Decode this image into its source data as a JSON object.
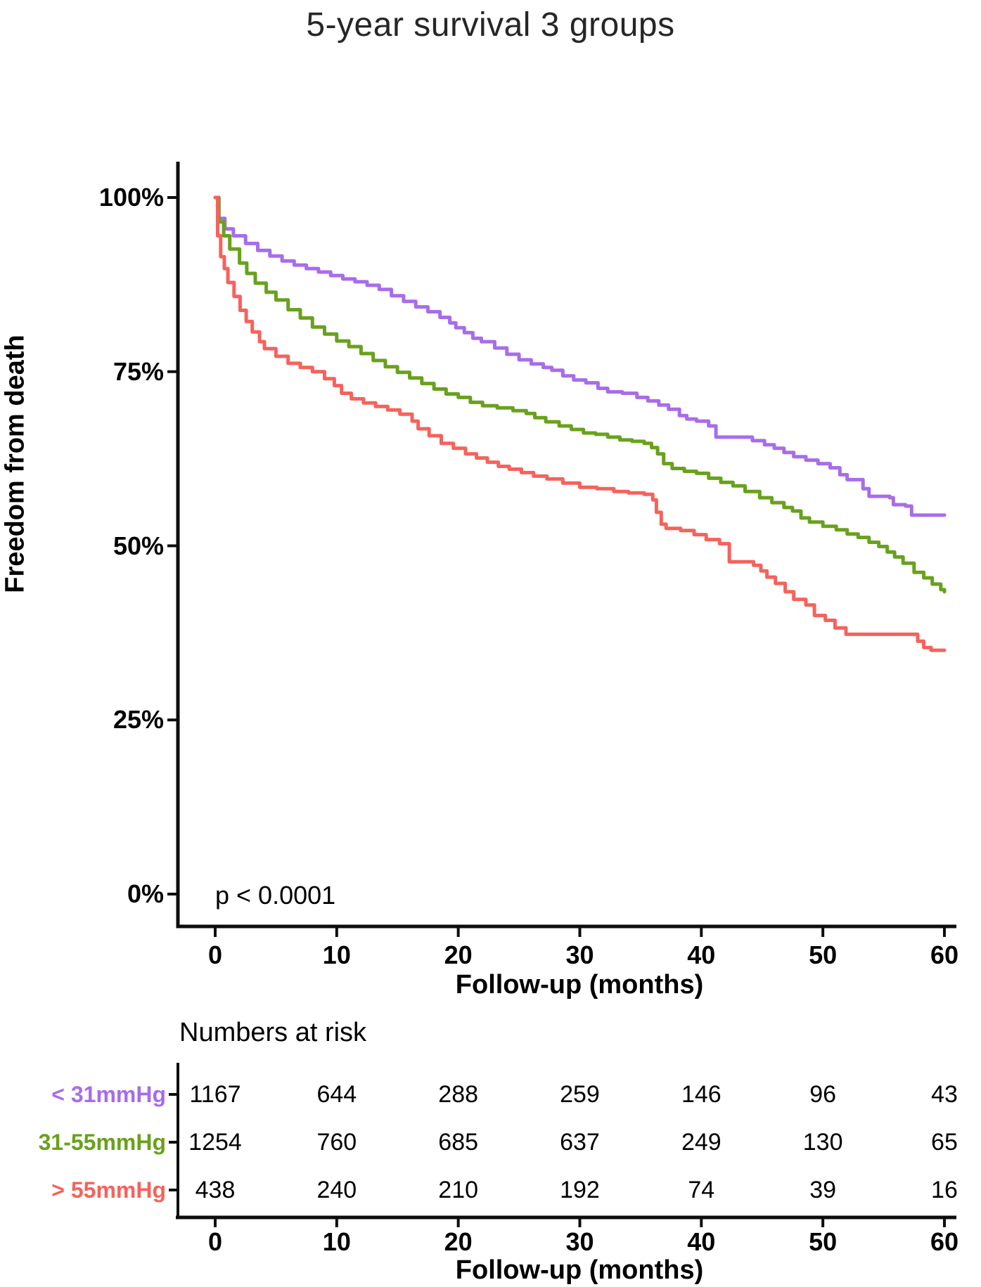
{
  "title": "5-year survival 3 groups",
  "chart_data": {
    "type": "line",
    "subtype": "kaplan-meier-step-curves",
    "title": "5-year survival 3 groups",
    "xlabel": "Follow-up (months)",
    "ylabel": "Freedom from death",
    "xlim": [
      0,
      60
    ],
    "ylim": [
      0,
      100
    ],
    "grid": false,
    "x_ticks": [
      0,
      10,
      20,
      30,
      40,
      50,
      60
    ],
    "y_ticks": [
      {
        "value": 100,
        "label": "100%"
      },
      {
        "value": 75,
        "label": "75%"
      },
      {
        "value": 50,
        "label": "50%"
      },
      {
        "value": 25,
        "label": "25%"
      },
      {
        "value": 0,
        "label": "0%"
      }
    ],
    "annotation": {
      "p_value_text": "p < 0.0001"
    },
    "series": [
      {
        "name": "< 31mmHg",
        "color": "#a76de9",
        "points": [
          [
            0,
            100
          ],
          [
            0.3,
            97
          ],
          [
            0.8,
            95.5
          ],
          [
            1.5,
            94.5
          ],
          [
            2.5,
            93.4
          ],
          [
            3.5,
            92.4
          ],
          [
            4.5,
            91.6
          ],
          [
            5.5,
            90.9
          ],
          [
            6.5,
            90.3
          ],
          [
            7.5,
            89.8
          ],
          [
            8.5,
            89.3
          ],
          [
            9.5,
            88.8
          ],
          [
            10.5,
            88.3
          ],
          [
            11.5,
            87.9
          ],
          [
            12.5,
            87.4
          ],
          [
            13.5,
            86.8
          ],
          [
            14.5,
            85.9
          ],
          [
            15.5,
            85.1
          ],
          [
            16.5,
            84.3
          ],
          [
            17.5,
            83.6
          ],
          [
            18.5,
            82.8
          ],
          [
            19.3,
            82
          ],
          [
            19.8,
            81.3
          ],
          [
            20.5,
            80.6
          ],
          [
            21.2,
            79.8
          ],
          [
            21.9,
            79.3
          ],
          [
            23,
            78.4
          ],
          [
            24,
            77.5
          ],
          [
            25,
            76.7
          ],
          [
            26,
            76.1
          ],
          [
            27,
            75.6
          ],
          [
            27.7,
            75.2
          ],
          [
            28.6,
            74.4
          ],
          [
            29.5,
            73.8
          ],
          [
            30.5,
            73.4
          ],
          [
            31.5,
            72.6
          ],
          [
            32.3,
            72.1
          ],
          [
            33.5,
            71.9
          ],
          [
            34.7,
            71.3
          ],
          [
            35.6,
            70.8
          ],
          [
            36.5,
            70.2
          ],
          [
            37.3,
            69.6
          ],
          [
            38.2,
            68.7
          ],
          [
            38.8,
            68.2
          ],
          [
            39.6,
            67.9
          ],
          [
            40.6,
            67.2
          ],
          [
            41.2,
            65.6
          ],
          [
            44.2,
            65.1
          ],
          [
            45.2,
            64.5
          ],
          [
            46,
            64
          ],
          [
            46.8,
            63.4
          ],
          [
            47.6,
            62.8
          ],
          [
            48.6,
            62.3
          ],
          [
            49.6,
            61.8
          ],
          [
            50.6,
            61.2
          ],
          [
            51.4,
            60.2
          ],
          [
            52,
            59.5
          ],
          [
            53.3,
            58.2
          ],
          [
            53.8,
            57.1
          ],
          [
            55.5,
            56.9
          ],
          [
            55.8,
            55.9
          ],
          [
            56.8,
            55.7
          ],
          [
            57.3,
            54.4
          ],
          [
            60,
            54.4
          ]
        ]
      },
      {
        "name": "31-55mmHg",
        "color": "#69a11d",
        "points": [
          [
            0,
            100
          ],
          [
            0.3,
            96.5
          ],
          [
            0.7,
            94.5
          ],
          [
            1.2,
            92.6
          ],
          [
            2,
            90.6
          ],
          [
            2.6,
            89.1
          ],
          [
            3.3,
            87.7
          ],
          [
            4.2,
            86.4
          ],
          [
            5,
            85.3
          ],
          [
            6,
            83.9
          ],
          [
            7,
            82.7
          ],
          [
            8,
            81.4
          ],
          [
            9,
            80.4
          ],
          [
            10,
            79.4
          ],
          [
            11,
            78.6
          ],
          [
            12,
            77.6
          ],
          [
            13,
            76.6
          ],
          [
            14,
            75.7
          ],
          [
            15,
            74.9
          ],
          [
            16,
            74.1
          ],
          [
            17,
            73.3
          ],
          [
            18,
            72.5
          ],
          [
            19,
            71.8
          ],
          [
            20,
            71.3
          ],
          [
            21,
            70.6
          ],
          [
            22,
            70.1
          ],
          [
            23.2,
            69.8
          ],
          [
            24.5,
            69.4
          ],
          [
            25.6,
            69
          ],
          [
            26.3,
            68.4
          ],
          [
            27.2,
            67.8
          ],
          [
            28.3,
            67.2
          ],
          [
            29.3,
            66.7
          ],
          [
            30.3,
            66.2
          ],
          [
            31.3,
            66
          ],
          [
            32.3,
            65.6
          ],
          [
            33.3,
            65.2
          ],
          [
            34.3,
            65
          ],
          [
            35.3,
            64.7
          ],
          [
            35.9,
            64.1
          ],
          [
            36.4,
            63.2
          ],
          [
            36.9,
            61.8
          ],
          [
            37.6,
            61.1
          ],
          [
            38.6,
            60.7
          ],
          [
            39.6,
            60.4
          ],
          [
            40.6,
            59.7
          ],
          [
            41.6,
            59.1
          ],
          [
            42.6,
            58.6
          ],
          [
            43.6,
            57.8
          ],
          [
            44.8,
            56.9
          ],
          [
            45.8,
            56.2
          ],
          [
            46.8,
            55.5
          ],
          [
            47.5,
            55
          ],
          [
            48.2,
            54
          ],
          [
            48.9,
            53.4
          ],
          [
            50,
            52.8
          ],
          [
            51.1,
            52.3
          ],
          [
            52,
            51.7
          ],
          [
            52.9,
            51.2
          ],
          [
            53.8,
            50.5
          ],
          [
            54.6,
            49.9
          ],
          [
            55.3,
            49.1
          ],
          [
            55.9,
            48.4
          ],
          [
            56.6,
            47.5
          ],
          [
            57.5,
            46.2
          ],
          [
            58.3,
            45.4
          ],
          [
            59,
            44.5
          ],
          [
            59.7,
            43.7
          ],
          [
            60,
            43.4
          ]
        ]
      },
      {
        "name": "> 55mmHg",
        "color": "#f4635c",
        "points": [
          [
            0,
            100
          ],
          [
            0.2,
            94.5
          ],
          [
            0.45,
            91.5
          ],
          [
            0.75,
            89.8
          ],
          [
            1.05,
            87.8
          ],
          [
            1.55,
            85.8
          ],
          [
            2.05,
            83.8
          ],
          [
            2.55,
            82.2
          ],
          [
            3.05,
            80.7
          ],
          [
            3.65,
            79.3
          ],
          [
            4.05,
            78.3
          ],
          [
            5,
            77.2
          ],
          [
            6,
            76.2
          ],
          [
            7,
            75.6
          ],
          [
            8,
            75
          ],
          [
            9,
            74
          ],
          [
            9.8,
            73
          ],
          [
            10.4,
            71.9
          ],
          [
            11.2,
            71.1
          ],
          [
            12.2,
            70.5
          ],
          [
            13.2,
            70
          ],
          [
            14.2,
            69.5
          ],
          [
            15.2,
            68.9
          ],
          [
            16.2,
            67.9
          ],
          [
            16.7,
            66.8
          ],
          [
            17.6,
            65.8
          ],
          [
            18.6,
            64.7
          ],
          [
            19.6,
            64
          ],
          [
            20.6,
            63.2
          ],
          [
            21.5,
            62.6
          ],
          [
            22.4,
            62
          ],
          [
            23.3,
            61.4
          ],
          [
            24.2,
            61
          ],
          [
            25.2,
            60.5
          ],
          [
            26.2,
            60
          ],
          [
            27.3,
            59.6
          ],
          [
            28.6,
            59
          ],
          [
            30,
            58.4
          ],
          [
            31.4,
            58.2
          ],
          [
            32.8,
            57.8
          ],
          [
            34,
            57.6
          ],
          [
            35.3,
            57.4
          ],
          [
            36,
            56.6
          ],
          [
            36.3,
            54.8
          ],
          [
            36.7,
            53.1
          ],
          [
            37.1,
            52.5
          ],
          [
            38.3,
            52.2
          ],
          [
            39.4,
            51.6
          ],
          [
            40.4,
            50.9
          ],
          [
            41.5,
            50.3
          ],
          [
            42.3,
            47.7
          ],
          [
            44.3,
            47.2
          ],
          [
            44.9,
            46.4
          ],
          [
            45.4,
            45.5
          ],
          [
            46.1,
            44.6
          ],
          [
            46.9,
            43.4
          ],
          [
            47.6,
            42.3
          ],
          [
            48.6,
            41.5
          ],
          [
            49.3,
            40
          ],
          [
            50.2,
            39.3
          ],
          [
            51,
            38.2
          ],
          [
            51.9,
            37.3
          ],
          [
            57.5,
            37.3
          ],
          [
            57.8,
            36.3
          ],
          [
            58.3,
            35.4
          ],
          [
            58.9,
            35
          ],
          [
            60,
            35
          ]
        ]
      }
    ],
    "risk_table": {
      "title": "Numbers at risk",
      "xlabel": "Follow-up (months)",
      "x_ticks": [
        0,
        10,
        20,
        30,
        40,
        50,
        60
      ],
      "rows": [
        {
          "label": "< 31mmHg",
          "color": "#a76de9",
          "values": [
            1167,
            644,
            288,
            259,
            146,
            96,
            43
          ]
        },
        {
          "label": "31-55mmHg",
          "color": "#69a11d",
          "values": [
            1254,
            760,
            685,
            637,
            249,
            130,
            65
          ]
        },
        {
          "label": "> 55mmHg",
          "color": "#f4635c",
          "values": [
            438,
            240,
            210,
            192,
            74,
            39,
            16
          ]
        }
      ]
    }
  }
}
